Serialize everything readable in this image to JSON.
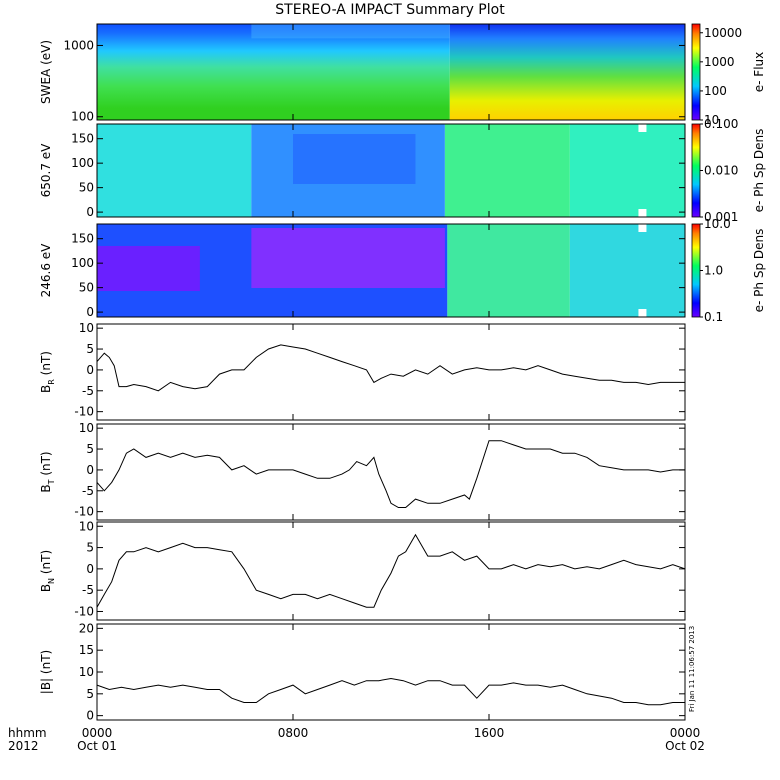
{
  "title": "STEREO-A IMPACT Summary Plot",
  "corner_label_1": "hhmm",
  "corner_label_2": "2012",
  "side_stamp": "Fri Jan 11 11:06:57 2013",
  "x_axis": {
    "range_hours": [
      0,
      24
    ],
    "ticks": [
      {
        "hour": 0,
        "l1": "0000",
        "l2": "Oct 01"
      },
      {
        "hour": 8,
        "l1": "0800",
        "l2": ""
      },
      {
        "hour": 16,
        "l1": "1600",
        "l2": ""
      },
      {
        "hour": 24,
        "l1": "0000",
        "l2": "Oct 02"
      }
    ]
  },
  "chart_data": [
    {
      "type": "heatmap",
      "ylabel": "SWEA (eV)",
      "y_scale": "log",
      "ylim": [
        90,
        2000
      ],
      "yticks": [
        100,
        1000
      ],
      "ytick_labels": [
        "100",
        "1000"
      ],
      "colorbar": {
        "label": "e- Flux",
        "scale": "log",
        "range": [
          10,
          20000
        ],
        "ticks": [
          10,
          100,
          1000,
          10000
        ],
        "tick_labels": [
          "10",
          "100",
          "1000",
          "10000"
        ]
      },
      "description_levels": {
        "before_1430_low_energy": 1000,
        "after_1430_low_energy": 8000
      }
    },
    {
      "type": "heatmap",
      "ylabel": "650.7 eV",
      "ylim": [
        -10,
        180
      ],
      "yticks": [
        0,
        50,
        100,
        150
      ],
      "ytick_labels": [
        "0",
        "50",
        "100",
        "150"
      ],
      "colorbar": {
        "label": "e- Ph Sp Dens",
        "scale": "log",
        "range": [
          0.001,
          0.1
        ],
        "ticks": [
          0.001,
          0.01,
          0.1
        ],
        "tick_labels": [
          "0.001",
          "0.010",
          "0.100"
        ]
      }
    },
    {
      "type": "heatmap",
      "ylabel": "246.6 eV",
      "ylim": [
        -10,
        180
      ],
      "yticks": [
        0,
        50,
        100,
        150
      ],
      "ytick_labels": [
        "0",
        "50",
        "100",
        "150"
      ],
      "colorbar": {
        "label": "e- Ph Sp Dens",
        "scale": "log",
        "range": [
          0.1,
          10
        ],
        "ticks": [
          0.1,
          1,
          10
        ],
        "tick_labels": [
          "0.1",
          "1.0",
          "10.0"
        ]
      }
    },
    {
      "type": "line",
      "ylabel": "B",
      "ylabel_sub": "R",
      "ylabel_unit": " (nT)",
      "ylim": [
        -12,
        11
      ],
      "yticks": [
        -10,
        -5,
        0,
        5,
        10
      ],
      "ytick_labels": [
        "-10",
        "-5",
        "0",
        "5",
        "10"
      ],
      "x": [
        0,
        0.3,
        0.5,
        0.7,
        0.9,
        1.2,
        1.5,
        2,
        2.5,
        3,
        3.5,
        4,
        4.5,
        5,
        5.5,
        6,
        6.5,
        7,
        7.5,
        8,
        8.5,
        9,
        9.5,
        10,
        10.5,
        11,
        11.3,
        11.6,
        12,
        12.5,
        13,
        13.5,
        14,
        14.5,
        15,
        15.5,
        16,
        16.5,
        17,
        17.5,
        18,
        18.5,
        19,
        19.5,
        20,
        20.5,
        21,
        21.5,
        22,
        22.5,
        23,
        23.5,
        24
      ],
      "y": [
        2,
        4,
        3,
        1,
        -4,
        -4,
        -3.5,
        -4,
        -5,
        -3,
        -4,
        -4.5,
        -4,
        -1,
        0,
        0,
        3,
        5,
        6,
        5.5,
        5,
        4,
        3,
        2,
        1,
        0,
        -3,
        -2,
        -1,
        -1.5,
        0,
        -1,
        1,
        -1,
        0,
        0.5,
        0,
        0,
        0.5,
        0,
        1,
        0,
        -1,
        -1.5,
        -2,
        -2.5,
        -2.5,
        -3,
        -3,
        -3.5,
        -3,
        -3,
        -3
      ]
    },
    {
      "type": "line",
      "ylabel": "B",
      "ylabel_sub": "T",
      "ylabel_unit": " (nT)",
      "ylim": [
        -12,
        11
      ],
      "yticks": [
        -10,
        -5,
        0,
        5,
        10
      ],
      "ytick_labels": [
        "-10",
        "-5",
        "0",
        "5",
        "10"
      ],
      "x": [
        0,
        0.3,
        0.6,
        0.9,
        1.2,
        1.5,
        2,
        2.5,
        3,
        3.5,
        4,
        4.5,
        5,
        5.5,
        6,
        6.5,
        7,
        7.5,
        8,
        8.5,
        9,
        9.5,
        10,
        10.3,
        10.6,
        11,
        11.3,
        11.5,
        11.8,
        12,
        12.3,
        12.6,
        13,
        13.5,
        14,
        14.5,
        15,
        15.2,
        15.5,
        16,
        16.5,
        17,
        17.5,
        18,
        18.5,
        19,
        19.5,
        20,
        20.5,
        21,
        21.5,
        22,
        22.5,
        23,
        23.5,
        24
      ],
      "y": [
        -3,
        -5,
        -3,
        0,
        4,
        5,
        3,
        4,
        3,
        4,
        3,
        3.5,
        3,
        0,
        1,
        -1,
        0,
        0,
        0,
        -1,
        -2,
        -2,
        -1,
        0,
        2,
        1,
        3,
        -1,
        -5,
        -8,
        -9,
        -9,
        -7,
        -8,
        -8,
        -7,
        -6,
        -7,
        -2,
        7,
        7,
        6,
        5,
        5,
        5,
        4,
        4,
        3,
        1,
        0.5,
        0,
        0,
        0,
        -0.5,
        0,
        0
      ]
    },
    {
      "type": "line",
      "ylabel": "B",
      "ylabel_sub": "N",
      "ylabel_unit": " (nT)",
      "ylim": [
        -12,
        11
      ],
      "yticks": [
        -10,
        -5,
        0,
        5,
        10
      ],
      "ytick_labels": [
        "-10",
        "-5",
        "0",
        "5",
        "10"
      ],
      "x": [
        0,
        0.3,
        0.6,
        0.9,
        1.2,
        1.5,
        2,
        2.5,
        3,
        3.5,
        4,
        4.5,
        5,
        5.5,
        6,
        6.5,
        7,
        7.5,
        8,
        8.5,
        9,
        9.5,
        10,
        10.5,
        11,
        11.3,
        11.6,
        12,
        12.3,
        12.6,
        13,
        13.5,
        14,
        14.5,
        15,
        15.5,
        16,
        16.5,
        17,
        17.5,
        18,
        18.5,
        19,
        19.5,
        20,
        20.5,
        21,
        21.5,
        22,
        22.5,
        23,
        23.5,
        24
      ],
      "y": [
        -9,
        -6,
        -3,
        2,
        4,
        4,
        5,
        4,
        5,
        6,
        5,
        5,
        4.5,
        4,
        0,
        -5,
        -6,
        -7,
        -6,
        -6,
        -7,
        -6,
        -7,
        -8,
        -9,
        -9,
        -5,
        -1,
        3,
        4,
        8,
        3,
        3,
        4,
        2,
        3,
        0,
        0,
        1,
        0,
        1,
        0.5,
        1,
        0,
        0.5,
        0,
        1,
        2,
        1,
        0.5,
        0,
        1,
        0
      ]
    },
    {
      "type": "line",
      "ylabel": "|B| (nT)",
      "ylim": [
        -1,
        21
      ],
      "yticks": [
        0,
        5,
        10,
        15,
        20
      ],
      "ytick_labels": [
        "0",
        "5",
        "10",
        "15",
        "20"
      ],
      "x": [
        0,
        0.5,
        1,
        1.5,
        2,
        2.5,
        3,
        3.5,
        4,
        4.5,
        5,
        5.5,
        6,
        6.5,
        7,
        7.5,
        8,
        8.5,
        9,
        9.5,
        10,
        10.5,
        11,
        11.5,
        12,
        12.5,
        13,
        13.5,
        14,
        14.5,
        15,
        15.5,
        16,
        16.5,
        17,
        17.5,
        18,
        18.5,
        19,
        19.5,
        20,
        20.5,
        21,
        21.5,
        22,
        22.5,
        23,
        23.5,
        24
      ],
      "y": [
        7,
        6,
        6.5,
        6,
        6.5,
        7,
        6.5,
        7,
        6.5,
        6,
        6,
        4,
        3,
        3,
        5,
        6,
        7,
        5,
        6,
        7,
        8,
        7,
        8,
        8,
        8.5,
        8,
        7,
        8,
        8,
        7,
        7,
        4,
        7,
        7,
        7.5,
        7,
        7,
        6.5,
        7,
        6,
        5,
        4.5,
        4,
        3,
        3,
        2.5,
        2.5,
        3,
        3
      ]
    }
  ]
}
